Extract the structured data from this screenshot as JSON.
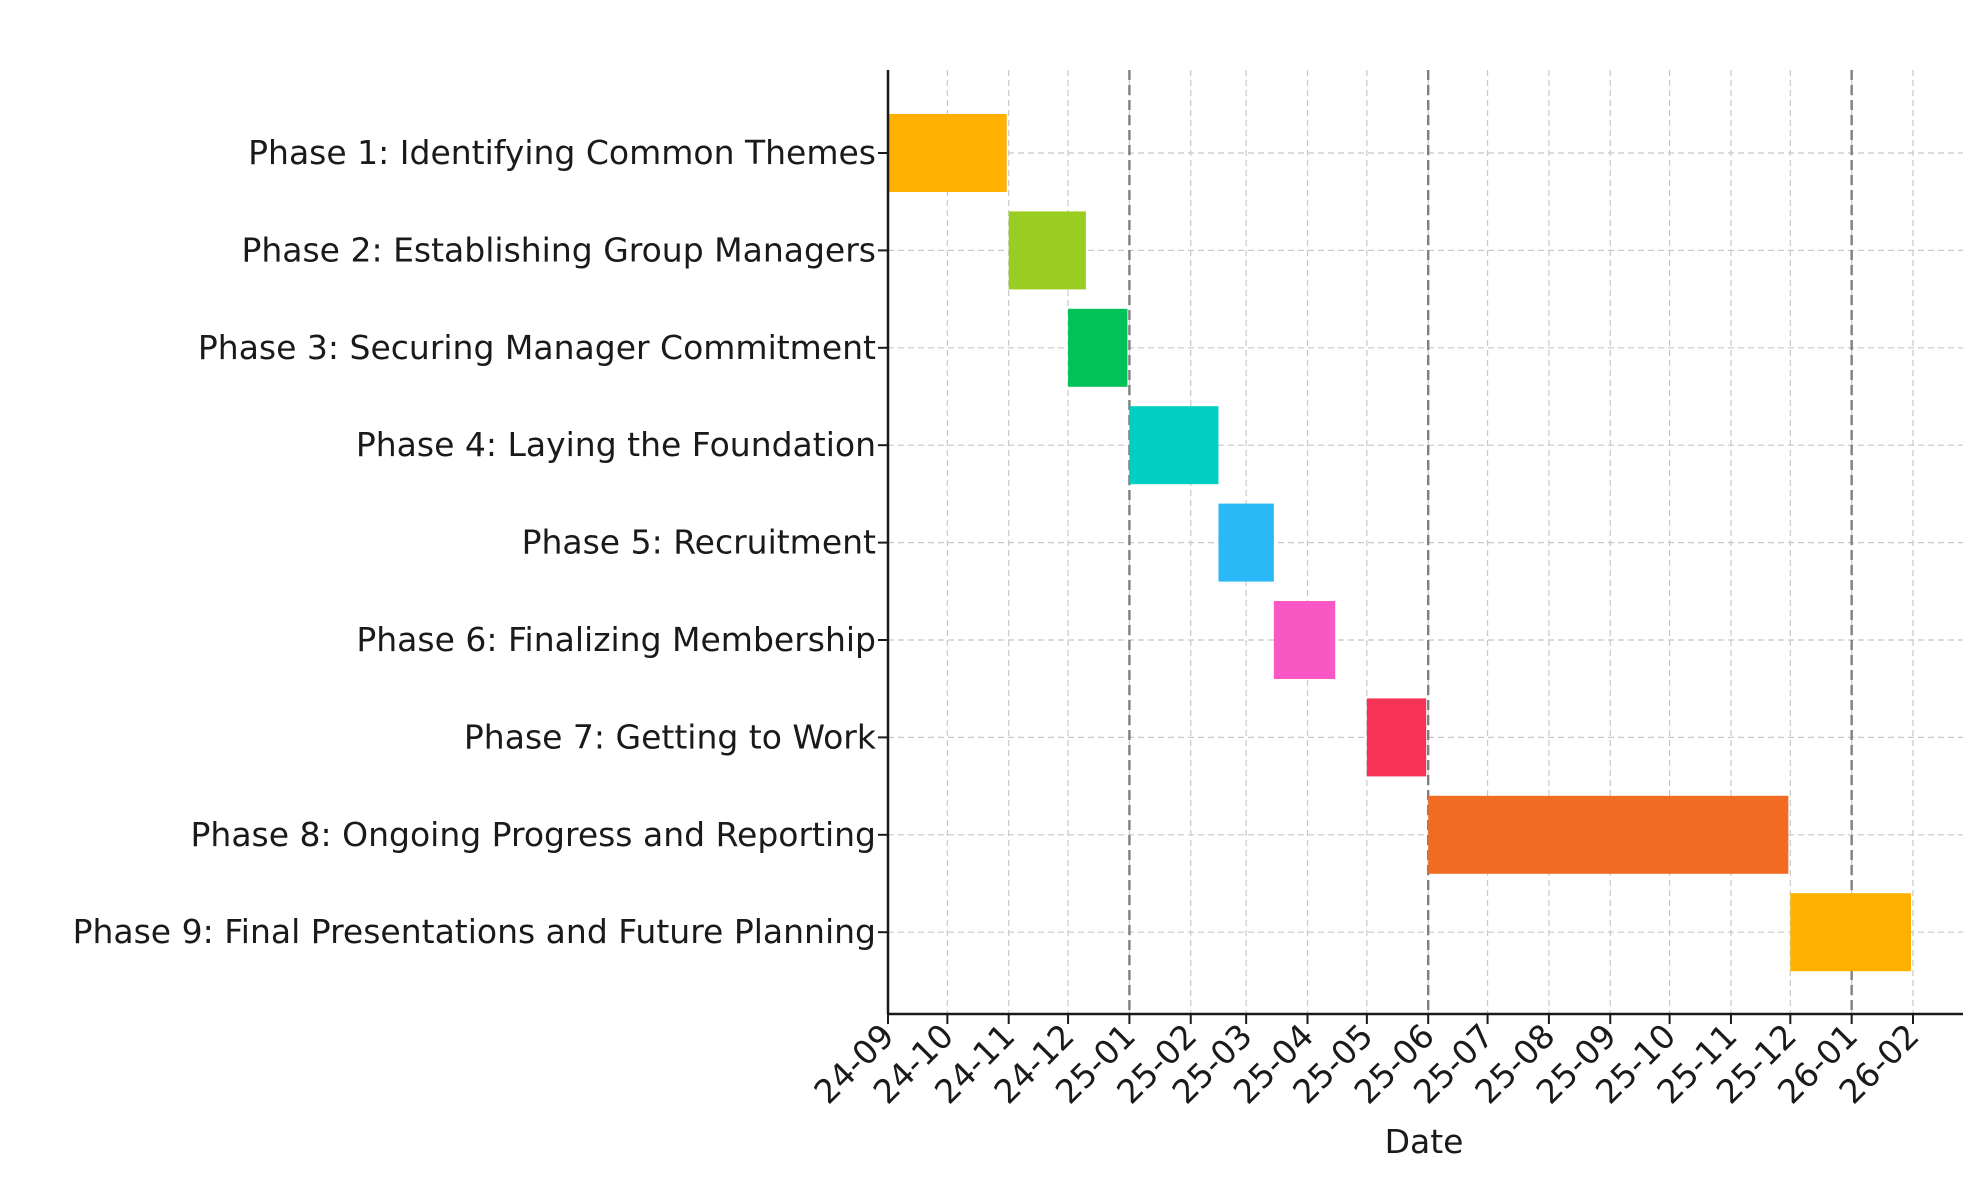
{
  "chart_data": {
    "type": "bar",
    "orientation": "horizontal-gantt",
    "title": "",
    "xlabel": "Date",
    "ylabel": "",
    "grid": true,
    "x_tick_labels": [
      "24-09",
      "24-10",
      "24-11",
      "24-12",
      "25-01",
      "25-02",
      "25-03",
      "25-04",
      "25-05",
      "25-06",
      "25-07",
      "25-08",
      "25-09",
      "25-10",
      "25-11",
      "25-12",
      "26-01",
      "26-02"
    ],
    "xlim": [
      "2024-09-01",
      "2026-02-01"
    ],
    "reference_dates": [
      "2025-01-01",
      "2025-06-01",
      "2026-01-01"
    ],
    "tasks": [
      {
        "label": "Phase 1: Identifying Common Themes",
        "start": "2024-09-01",
        "end": "2024-10-31",
        "color": "#FFB000"
      },
      {
        "label": "Phase 2: Establishing Group Managers",
        "start": "2024-11-01",
        "end": "2024-12-10",
        "color": "#9ACD22"
      },
      {
        "label": "Phase 3: Securing Manager Commitment",
        "start": "2024-12-01",
        "end": "2024-12-31",
        "color": "#00C259"
      },
      {
        "label": "Phase 4: Laying the Foundation",
        "start": "2025-01-01",
        "end": "2025-02-15",
        "color": "#00CFC1"
      },
      {
        "label": "Phase 5: Recruitment",
        "start": "2025-02-15",
        "end": "2025-03-15",
        "color": "#2BB8F7"
      },
      {
        "label": "Phase 6: Finalizing Membership",
        "start": "2025-03-15",
        "end": "2025-04-15",
        "color": "#F957C4"
      },
      {
        "label": "Phase 7: Getting to Work",
        "start": "2025-05-01",
        "end": "2025-05-31",
        "color": "#F73458"
      },
      {
        "label": "Phase 8: Ongoing Progress and Reporting",
        "start": "2025-06-01",
        "end": "2025-11-30",
        "color": "#F26B22"
      },
      {
        "label": "Phase 9: Final Presentations and Future Planning",
        "start": "2025-12-01",
        "end": "2026-01-31",
        "color": "#FFB000"
      }
    ]
  }
}
